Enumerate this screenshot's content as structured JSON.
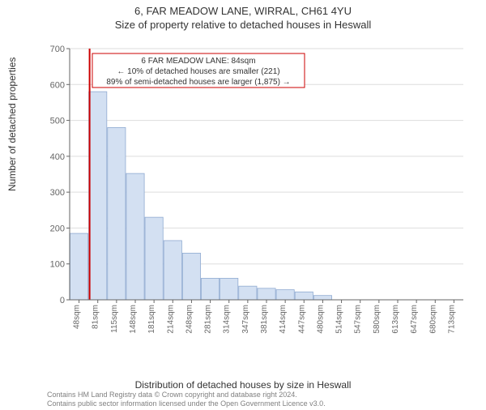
{
  "titles": {
    "main": "6, FAR MEADOW LANE, WIRRAL, CH61 4YU",
    "sub": "Size of property relative to detached houses in Heswall"
  },
  "axes": {
    "ylabel": "Number of detached properties",
    "xlabel": "Distribution of detached houses by size in Heswall"
  },
  "chart": {
    "type": "bar",
    "categories": [
      "48sqm",
      "81sqm",
      "115sqm",
      "148sqm",
      "181sqm",
      "214sqm",
      "248sqm",
      "281sqm",
      "314sqm",
      "347sqm",
      "381sqm",
      "414sqm",
      "447sqm",
      "480sqm",
      "514sqm",
      "547sqm",
      "580sqm",
      "613sqm",
      "647sqm",
      "680sqm",
      "713sqm"
    ],
    "values": [
      185,
      580,
      480,
      352,
      230,
      165,
      130,
      60,
      60,
      38,
      32,
      28,
      22,
      12,
      0,
      0,
      0,
      0,
      0,
      0,
      0
    ],
    "bar_fill": "#d3e0f2",
    "bar_stroke": "#8faad1",
    "ylim": [
      0,
      700
    ],
    "ytick_step": 100,
    "grid_color": "#dddddd",
    "axis_color": "#666666",
    "background_color": "#ffffff",
    "marker": {
      "index": 1,
      "color": "#cc0000",
      "width": 2
    }
  },
  "callout": {
    "line1": "6 FAR MEADOW LANE: 84sqm",
    "line2": "← 10% of detached houses are smaller (221)",
    "line3": "89% of semi-detached houses are larger (1,875) →",
    "border_color": "#cc0000"
  },
  "attribution": {
    "line1": "Contains HM Land Registry data © Crown copyright and database right 2024.",
    "line2": "Contains public sector information licensed under the Open Government Licence v3.0."
  }
}
